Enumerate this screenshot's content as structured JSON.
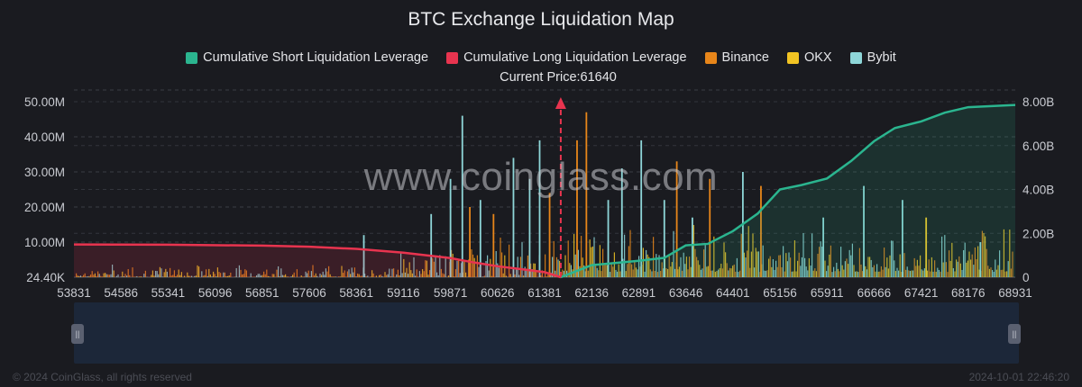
{
  "title": "BTC Exchange Liquidation Map",
  "current_price_label": "Current Price:61640",
  "watermark": "www.coinglass.com",
  "footer": {
    "copyright": "© 2024 CoinGlass, all rights reserved",
    "timestamp": "2024-10-01 22:46:20"
  },
  "legend": [
    {
      "label": "Cumulative Short Liquidation Leverage",
      "color": "#2bb58f"
    },
    {
      "label": "Cumulative Long Liquidation Leverage",
      "color": "#e8344f"
    },
    {
      "label": "Binance",
      "color": "#e8861a"
    },
    {
      "label": "OKX",
      "color": "#f2c423"
    },
    {
      "label": "Bybit",
      "color": "#8ed6d8"
    }
  ],
  "zoom": {
    "left_handle": "||",
    "right_handle": "||"
  },
  "chart_data": {
    "type": "bar",
    "title": "BTC Exchange Liquidation Map",
    "current_price": 61640,
    "x_tick_labels": [
      "53831",
      "54586",
      "55341",
      "56096",
      "56851",
      "57606",
      "58361",
      "59116",
      "59871",
      "60626",
      "61381",
      "62136",
      "62891",
      "63646",
      "64401",
      "65156",
      "65911",
      "66666",
      "67421",
      "68176",
      "68931"
    ],
    "xlim": [
      53831,
      68931
    ],
    "y_left_tick_labels": [
      "24.40K",
      "10.00M",
      "20.00M",
      "30.00M",
      "40.00M",
      "50.00M"
    ],
    "y_left_ticks": [
      0,
      10000000,
      20000000,
      30000000,
      40000000,
      50000000
    ],
    "ylim_left": [
      0,
      50000000
    ],
    "y_right_tick_labels": [
      "0",
      "2.00B",
      "4.00B",
      "6.00B",
      "8.00B"
    ],
    "y_right_ticks": [
      0,
      2000000000,
      4000000000,
      6000000000,
      8000000000
    ],
    "ylim_right": [
      0,
      8000000000
    ],
    "grid": true,
    "legend_position": "top-center",
    "cumulative_long": {
      "name": "Cumulative Long Liquidation Leverage",
      "x": [
        53831,
        55341,
        56851,
        57606,
        58361,
        59116,
        59871,
        60250,
        60626,
        61000,
        61381,
        61640
      ],
      "y": [
        1490000000.0,
        1480000000.0,
        1440000000.0,
        1390000000.0,
        1290000000.0,
        1120000000.0,
        870000000.0,
        670000000.0,
        500000000.0,
        370000000.0,
        230000000.0,
        0.0
      ]
    },
    "cumulative_short": {
      "name": "Cumulative Short Liquidation Leverage",
      "x": [
        61640,
        62136,
        62891,
        63300,
        63646,
        64000,
        64401,
        64800,
        65156,
        65500,
        65911,
        66300,
        66666,
        67000,
        67421,
        67800,
        68176,
        68931
      ],
      "y": [
        0.0,
        550000000.0,
        750000000.0,
        880000000.0,
        1450000000.0,
        1520000000.0,
        2100000000.0,
        2900000000.0,
        4000000000.0,
        4200000000.0,
        4500000000.0,
        5300000000.0,
        6200000000.0,
        6800000000.0,
        7100000000.0,
        7500000000.0,
        7750000000.0,
        7850000000.0
      ]
    },
    "spikes": [
      {
        "x": 59560,
        "value": 18000000,
        "series": "Bybit"
      },
      {
        "x": 59870,
        "value": 28000000,
        "series": "Bybit"
      },
      {
        "x": 60060,
        "value": 46000000,
        "series": "Bybit"
      },
      {
        "x": 60180,
        "value": 20000000,
        "series": "Binance"
      },
      {
        "x": 60350,
        "value": 22000000,
        "series": "Bybit"
      },
      {
        "x": 60560,
        "value": 18000000,
        "series": "Binance"
      },
      {
        "x": 60880,
        "value": 34000000,
        "series": "Bybit"
      },
      {
        "x": 61140,
        "value": 28000000,
        "series": "Bybit"
      },
      {
        "x": 61300,
        "value": 39000000,
        "series": "Bybit"
      },
      {
        "x": 61460,
        "value": 24000000,
        "series": "Binance"
      },
      {
        "x": 61900,
        "value": 39000000,
        "series": "Binance"
      },
      {
        "x": 62050,
        "value": 47000000,
        "series": "Binance"
      },
      {
        "x": 62400,
        "value": 22000000,
        "series": "Bybit"
      },
      {
        "x": 62620,
        "value": 31000000,
        "series": "Bybit"
      },
      {
        "x": 62930,
        "value": 39000000,
        "series": "Bybit"
      },
      {
        "x": 63300,
        "value": 22000000,
        "series": "Bybit"
      },
      {
        "x": 63500,
        "value": 33000000,
        "series": "Binance"
      },
      {
        "x": 63750,
        "value": 17000000,
        "series": "Bybit"
      },
      {
        "x": 64030,
        "value": 28000000,
        "series": "Binance"
      },
      {
        "x": 64560,
        "value": 30000000,
        "series": "Bybit"
      },
      {
        "x": 64850,
        "value": 26000000,
        "series": "Binance"
      },
      {
        "x": 65850,
        "value": 17000000,
        "series": "Bybit"
      },
      {
        "x": 66500,
        "value": 26000000,
        "series": "Bybit"
      },
      {
        "x": 67120,
        "value": 22000000,
        "series": "Bybit"
      },
      {
        "x": 67500,
        "value": 17000000,
        "series": "OKX"
      },
      {
        "x": 68370,
        "value": 10000000,
        "series": "Bybit"
      },
      {
        "x": 58480,
        "value": 12000000,
        "series": "Bybit"
      }
    ]
  }
}
